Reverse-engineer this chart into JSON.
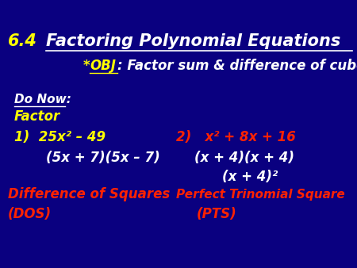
{
  "bg_color": "#0a0080",
  "white": "#FFFFFF",
  "yellow": "#FFFF00",
  "red": "#FF2200",
  "title_num": "6.4",
  "title_text": "Factoring Polynomial Equations",
  "subtitle_star": "*",
  "subtitle_obj": "OBJ",
  "subtitle_rest": ": Factor sum & difference of cubes",
  "do_now_label": "Do Now:",
  "factor_label": "Factor",
  "item1_problem": "1)  25x² – 49",
  "item1_answer": "    (5x + 7)(5x – 7)",
  "item1_label1": "Difference of Squares",
  "item1_label2": "(DOS)",
  "item2_problem": "2)   x² + 8x + 16",
  "item2_answer1": "(x + 4)(x + 4)",
  "item2_answer2": "(x + 4)²",
  "item2_label1": "Perfect Trinomial Square",
  "item2_label2": "(PTS)"
}
